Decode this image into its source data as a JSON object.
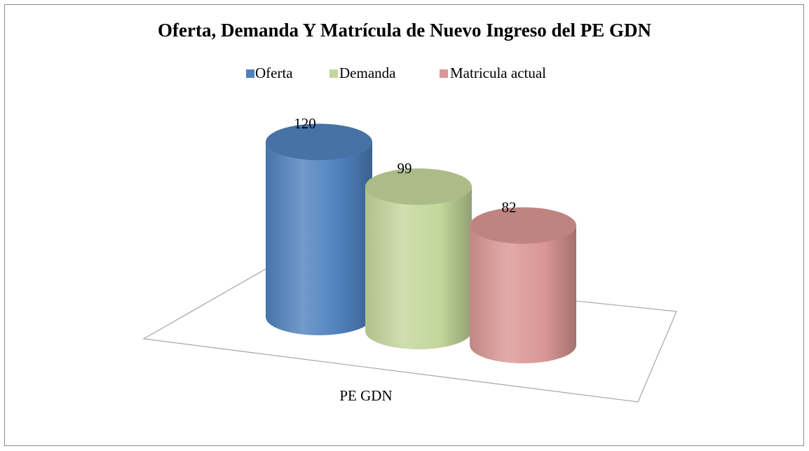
{
  "chart_data": {
    "type": "bar",
    "title": "Oferta, Demanda Y Matrícula de Nuevo Ingreso del PE GDN",
    "categories": [
      "PE GDN"
    ],
    "series": [
      {
        "name": "Oferta",
        "color": "#4f81bd",
        "values": [
          120
        ]
      },
      {
        "name": "Demanda",
        "color": "#c3d69b",
        "values": [
          99
        ]
      },
      {
        "name": "Matricula actual",
        "color": "#d99694",
        "values": [
          82
        ]
      }
    ],
    "legend": "top"
  }
}
